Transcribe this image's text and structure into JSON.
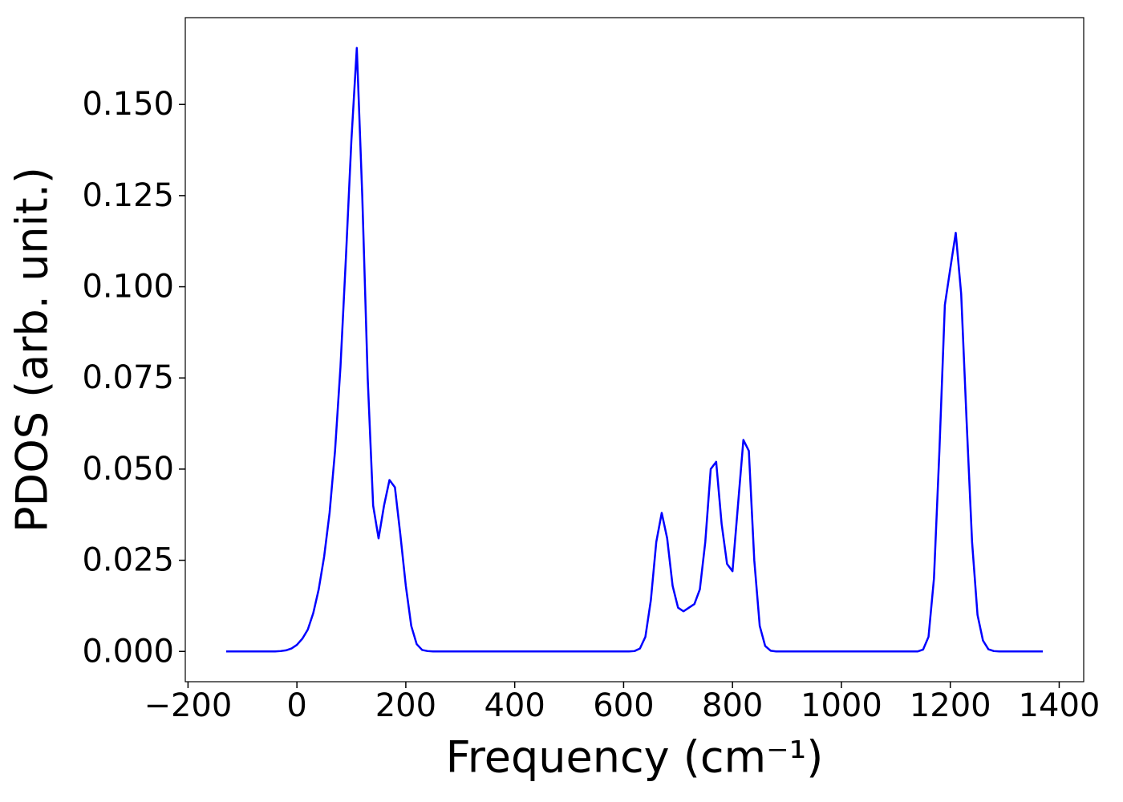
{
  "chart_data": {
    "type": "line",
    "xlabel": "Frequency (cm⁻¹)",
    "ylabel": "PDOS (arb. unit.)",
    "x": [
      -130,
      -120,
      -110,
      -100,
      -90,
      -80,
      -70,
      -60,
      -50,
      -40,
      -30,
      -20,
      -10,
      0,
      10,
      20,
      30,
      40,
      50,
      60,
      70,
      80,
      90,
      100,
      110,
      120,
      130,
      140,
      150,
      160,
      170,
      180,
      190,
      200,
      210,
      220,
      230,
      240,
      250,
      260,
      270,
      280,
      290,
      300,
      310,
      320,
      330,
      340,
      350,
      360,
      370,
      380,
      390,
      400,
      410,
      420,
      430,
      440,
      450,
      460,
      470,
      480,
      490,
      500,
      510,
      520,
      530,
      540,
      550,
      560,
      570,
      580,
      590,
      600,
      610,
      620,
      630,
      640,
      650,
      660,
      670,
      680,
      690,
      700,
      710,
      720,
      730,
      740,
      750,
      760,
      770,
      780,
      790,
      800,
      810,
      820,
      830,
      840,
      850,
      860,
      870,
      880,
      890,
      900,
      910,
      920,
      930,
      940,
      950,
      960,
      970,
      980,
      990,
      1000,
      1010,
      1020,
      1030,
      1040,
      1050,
      1060,
      1070,
      1080,
      1090,
      1100,
      1110,
      1120,
      1130,
      1140,
      1150,
      1160,
      1170,
      1180,
      1190,
      1200,
      1210,
      1220,
      1230,
      1240,
      1250,
      1260,
      1270,
      1280,
      1290,
      1300,
      1310,
      1320,
      1330,
      1340,
      1350,
      1360,
      1370
    ],
    "values": [
      0,
      0,
      0,
      0,
      0,
      0,
      0,
      0,
      0,
      0,
      0.0001,
      0.0003,
      0.0008,
      0.0018,
      0.0035,
      0.006,
      0.0105,
      0.017,
      0.026,
      0.038,
      0.055,
      0.078,
      0.108,
      0.14,
      0.1655,
      0.125,
      0.075,
      0.04,
      0.031,
      0.04,
      0.047,
      0.045,
      0.032,
      0.018,
      0.007,
      0.002,
      0.0004,
      0.0001,
      0,
      0,
      0,
      0,
      0,
      0,
      0,
      0,
      0,
      0,
      0,
      0,
      0,
      0,
      0,
      0,
      0,
      0,
      0,
      0,
      0,
      0,
      0,
      0,
      0,
      0,
      0,
      0,
      0,
      0,
      0,
      0,
      0,
      0,
      0,
      0,
      0,
      0.0001,
      0.0008,
      0.004,
      0.014,
      0.03,
      0.038,
      0.031,
      0.018,
      0.012,
      0.011,
      0.012,
      0.013,
      0.017,
      0.03,
      0.05,
      0.052,
      0.035,
      0.024,
      0.022,
      0.04,
      0.058,
      0.055,
      0.025,
      0.007,
      0.0015,
      0.0002,
      0,
      0,
      0,
      0,
      0,
      0,
      0,
      0,
      0,
      0,
      0,
      0,
      0,
      0,
      0,
      0,
      0,
      0,
      0,
      0,
      0,
      0,
      0,
      0,
      0,
      0,
      0,
      0.0005,
      0.004,
      0.02,
      0.055,
      0.095,
      0.105,
      0.1148,
      0.098,
      0.063,
      0.03,
      0.01,
      0.003,
      0.0006,
      0.0001,
      0,
      0,
      0,
      0,
      0,
      0,
      0,
      0,
      0
    ],
    "color": "#0000ff",
    "xlim": [
      -205,
      1445
    ],
    "ylim": [
      -0.0083,
      0.1738
    ],
    "xticks": [
      {
        "value": -200,
        "label": "−200"
      },
      0,
      200,
      400,
      600,
      800,
      1000,
      1200,
      1400
    ],
    "yticks": [
      {
        "value": 0,
        "label": "0.000"
      },
      {
        "value": 0.025,
        "label": "0.025"
      },
      {
        "value": 0.05,
        "label": "0.050"
      },
      {
        "value": 0.075,
        "label": "0.075"
      },
      {
        "value": 0.1,
        "label": "0.100"
      },
      {
        "value": 0.125,
        "label": "0.125"
      },
      {
        "value": 0.15,
        "label": "0.150"
      }
    ],
    "grid": false
  }
}
